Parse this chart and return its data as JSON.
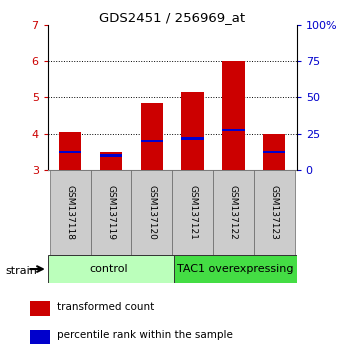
{
  "title": "GDS2451 / 256969_at",
  "samples": [
    "GSM137118",
    "GSM137119",
    "GSM137120",
    "GSM137121",
    "GSM137122",
    "GSM137123"
  ],
  "red_values": [
    4.05,
    3.5,
    4.85,
    5.15,
    6.0,
    4.0
  ],
  "blue_values": [
    3.5,
    3.4,
    3.8,
    3.87,
    4.1,
    3.5
  ],
  "ylim": [
    3.0,
    7.0
  ],
  "yticks": [
    3,
    4,
    5,
    6,
    7
  ],
  "y2lim": [
    0,
    100
  ],
  "y2ticks": [
    0,
    25,
    50,
    75,
    100
  ],
  "y2ticklabels": [
    "0",
    "25",
    "50",
    "75",
    "100%"
  ],
  "red_color": "#cc0000",
  "blue_color": "#0000cc",
  "bar_bottom": 3.0,
  "bar_width": 0.55,
  "group_labels": [
    "control",
    "TAC1 overexpressing"
  ],
  "group_colors_light": "#bbffbb",
  "group_colors_dark": "#44dd44",
  "tick_label_color_left": "#cc0000",
  "tick_label_color_right": "#0000cc",
  "legend_red": "transformed count",
  "legend_blue": "percentile rank within the sample",
  "strain_label": "strain",
  "xticklabel_bg": "#cccccc",
  "grid_yticks": [
    4,
    5,
    6
  ]
}
